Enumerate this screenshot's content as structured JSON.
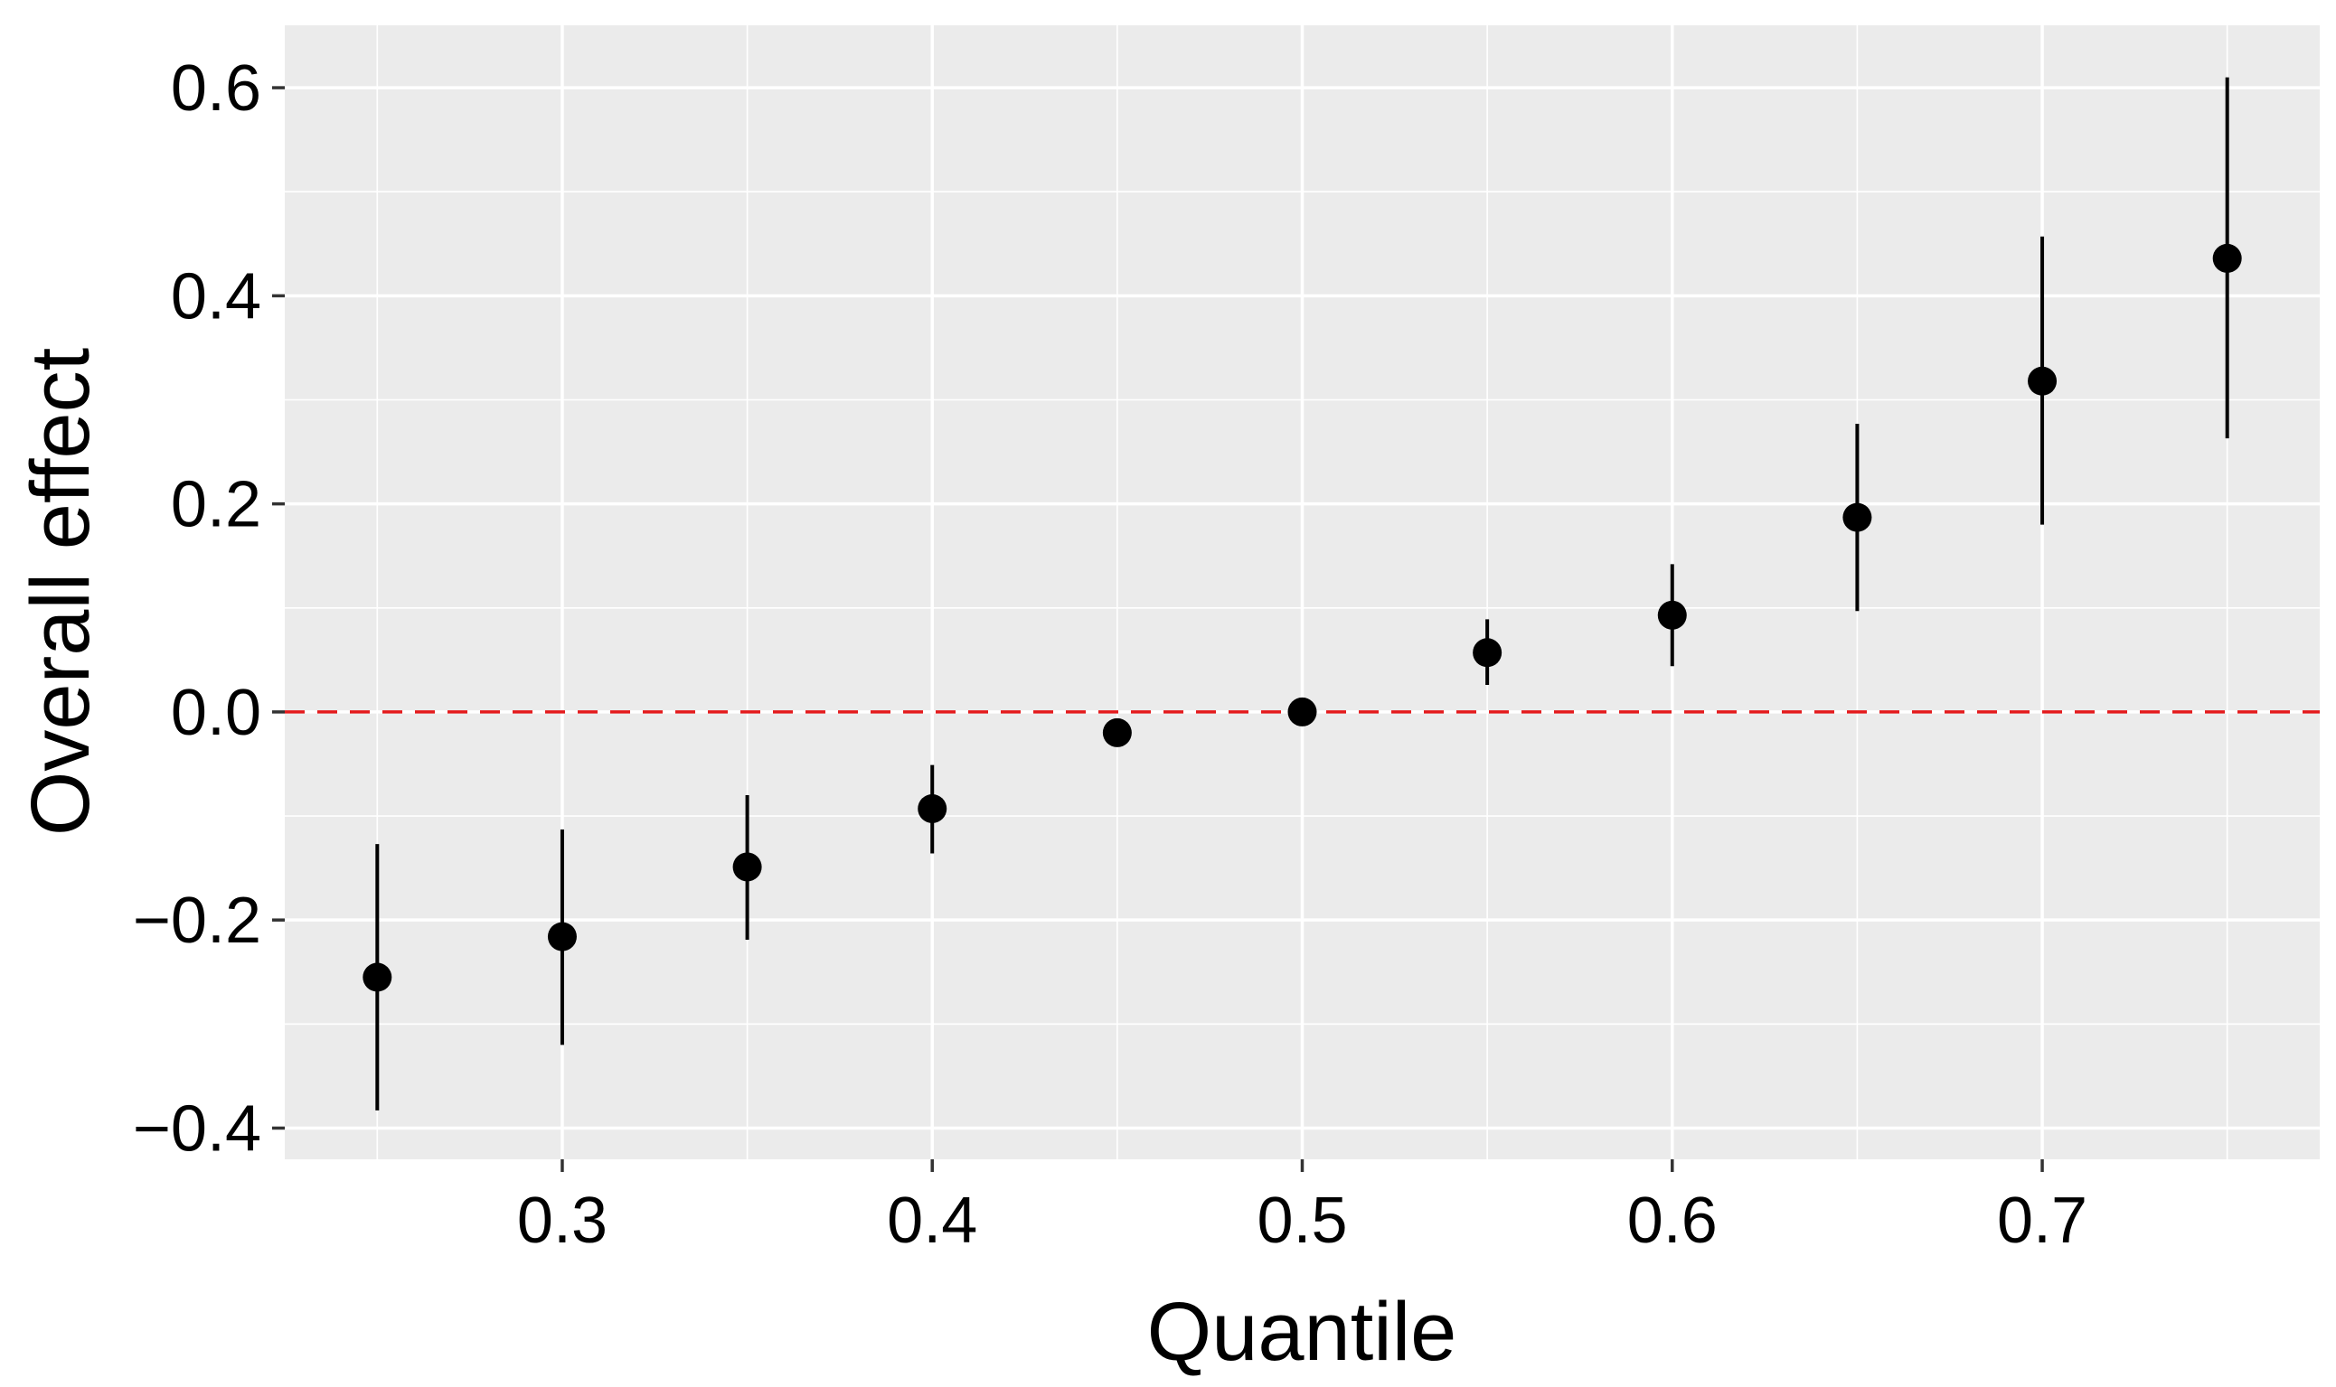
{
  "chart_data": {
    "type": "scatter",
    "title": "",
    "xlabel": "Quantile",
    "ylabel": "Overall effect",
    "xlim": [
      0.225,
      0.775
    ],
    "ylim": [
      -0.43,
      0.66
    ],
    "x_ticks": [
      0.3,
      0.4,
      0.5,
      0.6,
      0.7
    ],
    "x_tick_labels": [
      "0.3",
      "0.4",
      "0.5",
      "0.6",
      "0.7"
    ],
    "y_ticks": [
      -0.4,
      -0.2,
      0.0,
      0.2,
      0.4,
      0.6
    ],
    "y_tick_labels": [
      "−0.4",
      "−0.2",
      "0.0",
      "0.2",
      "0.4",
      "0.6"
    ],
    "grid": true,
    "reference_line": {
      "y": 0.0,
      "style": "dashed",
      "color": "#E41A1C"
    },
    "points": [
      {
        "x": 0.25,
        "y": -0.255,
        "lower": -0.383,
        "upper": -0.127
      },
      {
        "x": 0.3,
        "y": -0.216,
        "lower": -0.32,
        "upper": -0.113
      },
      {
        "x": 0.35,
        "y": -0.149,
        "lower": -0.219,
        "upper": -0.08
      },
      {
        "x": 0.4,
        "y": -0.093,
        "lower": -0.136,
        "upper": -0.051
      },
      {
        "x": 0.45,
        "y": -0.02,
        "lower": -0.026,
        "upper": -0.014
      },
      {
        "x": 0.5,
        "y": 0.0,
        "lower": -0.003,
        "upper": 0.003
      },
      {
        "x": 0.55,
        "y": 0.057,
        "lower": 0.026,
        "upper": 0.089
      },
      {
        "x": 0.6,
        "y": 0.093,
        "lower": 0.044,
        "upper": 0.142
      },
      {
        "x": 0.65,
        "y": 0.187,
        "lower": 0.097,
        "upper": 0.277
      },
      {
        "x": 0.7,
        "y": 0.318,
        "lower": 0.18,
        "upper": 0.457
      },
      {
        "x": 0.75,
        "y": 0.436,
        "lower": 0.263,
        "upper": 0.61
      }
    ],
    "colors": {
      "point": "#000000",
      "error_bar": "#000000",
      "reference_line": "#E41A1C",
      "panel": "#EBEBEB",
      "grid": "#FFFFFF"
    }
  }
}
